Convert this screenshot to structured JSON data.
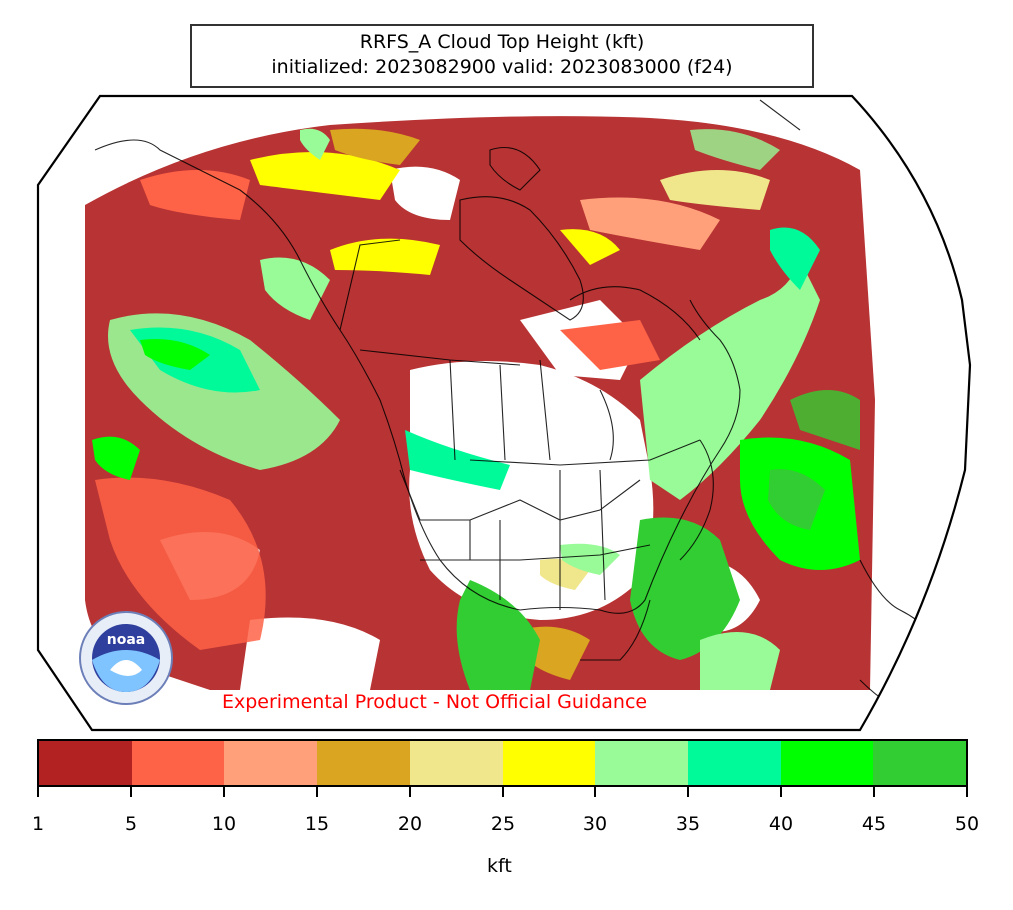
{
  "title": {
    "line1": "RRFS_A Cloud Top Height (kft)",
    "line2": "initialized: 2023082900 valid: 2023083000 (f24)"
  },
  "disclaimer": "Experimental Product - Not Official Guidance",
  "logo": {
    "text": "noaa",
    "ring_text": "NATIONAL OCEANIC AND ATMOSPHERIC ADMINISTRATION · U.S. DEPARTMENT OF COMMERCE"
  },
  "colorbar": {
    "unit_label": "kft",
    "ticks": [
      "1",
      "5",
      "10",
      "15",
      "20",
      "25",
      "30",
      "35",
      "40",
      "45",
      "50"
    ],
    "colors": [
      "#b22222",
      "#ff6347",
      "#ffa07a",
      "#daa520",
      "#f0e68c",
      "#ffff00",
      "#98fb98",
      "#00fa9a",
      "#00ff00",
      "#32cd32"
    ]
  }
}
